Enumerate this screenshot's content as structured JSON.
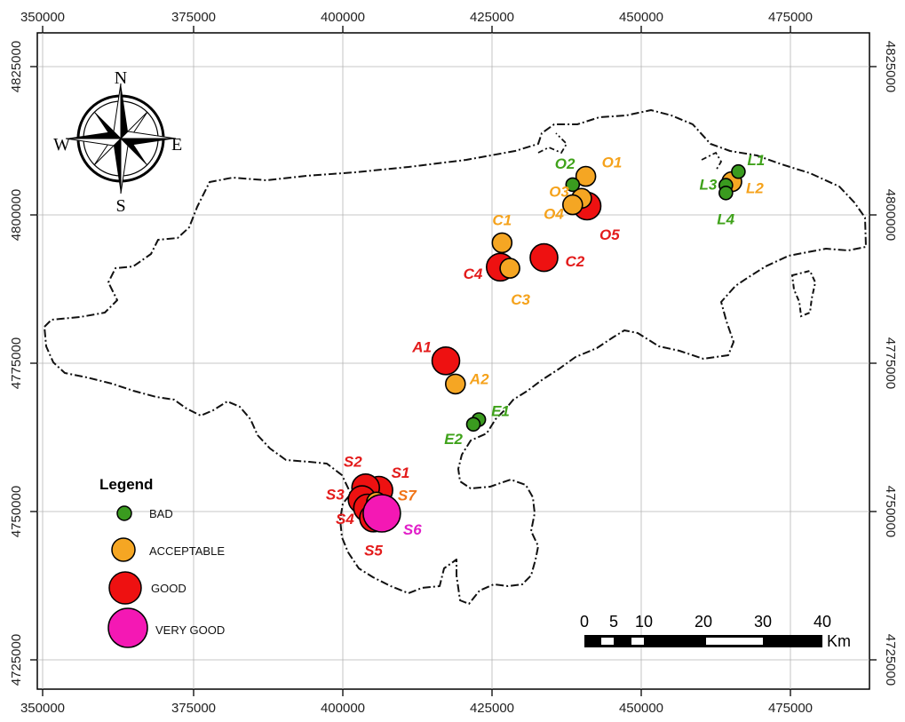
{
  "map": {
    "x_ticks": [
      "350000",
      "375000",
      "400000",
      "425000",
      "450000",
      "475000"
    ],
    "y_ticks": [
      "4825000",
      "4800000",
      "4775000",
      "4750000",
      "4725000"
    ],
    "colors": {
      "bad": "#3a9b1f",
      "acceptable": "#f5a623",
      "good": "#ee1111",
      "very_good": "#f418b4",
      "label_red": "#e31b1b",
      "label_orange": "#f5a21b",
      "label_green": "#3fa21a",
      "label_magenta": "#e11ec8",
      "label_darkorange": "#f07418"
    }
  },
  "compass": {
    "n": "N",
    "s": "S",
    "e": "E",
    "w": "W"
  },
  "legend": {
    "title": "Legend",
    "items": [
      {
        "key": "bad",
        "label": "BAD"
      },
      {
        "key": "acceptable",
        "label": "ACCEPTABLE"
      },
      {
        "key": "good",
        "label": "GOOD"
      },
      {
        "key": "very_good",
        "label": "VERY GOOD"
      }
    ]
  },
  "scale_bar": {
    "ticks": [
      "0",
      "5",
      "10",
      "20",
      "30",
      "40"
    ],
    "unit": "Km"
  },
  "sites": [
    {
      "id": "L1",
      "class": "bad",
      "x": 466300,
      "y": 4807300
    },
    {
      "id": "L2",
      "class": "acceptable",
      "x": 465200,
      "y": 4805600
    },
    {
      "id": "L3",
      "class": "bad",
      "x": 464200,
      "y": 4805000
    },
    {
      "id": "L4",
      "class": "bad",
      "x": 464200,
      "y": 4803700
    },
    {
      "id": "O1",
      "class": "acceptable",
      "x": 440800,
      "y": 4806500
    },
    {
      "id": "O2",
      "class": "bad",
      "x": 438600,
      "y": 4805100
    },
    {
      "id": "O3",
      "class": "acceptable",
      "x": 440100,
      "y": 4802800
    },
    {
      "id": "O4",
      "class": "acceptable",
      "x": 438600,
      "y": 4801700
    },
    {
      "id": "O5",
      "class": "good",
      "x": 441000,
      "y": 4801500
    },
    {
      "id": "C1",
      "class": "acceptable",
      "x": 426800,
      "y": 4795300
    },
    {
      "id": "C2",
      "class": "good",
      "x": 433800,
      "y": 4792800
    },
    {
      "id": "C3",
      "class": "acceptable",
      "x": 428100,
      "y": 4791000
    },
    {
      "id": "C4",
      "class": "good",
      "x": 426500,
      "y": 4791200
    },
    {
      "id": "A1",
      "class": "good",
      "x": 417400,
      "y": 4775400
    },
    {
      "id": "A2",
      "class": "acceptable",
      "x": 419000,
      "y": 4771500
    },
    {
      "id": "E1",
      "class": "bad",
      "x": 422900,
      "y": 4765500
    },
    {
      "id": "E2",
      "class": "bad",
      "x": 422000,
      "y": 4764700
    },
    {
      "id": "S1",
      "class": "good",
      "x": 406200,
      "y": 4753600
    },
    {
      "id": "S2",
      "class": "good",
      "x": 404000,
      "y": 4754000
    },
    {
      "id": "S3",
      "class": "good",
      "x": 403400,
      "y": 4752000
    },
    {
      "id": "S4",
      "class": "good",
      "x": 404300,
      "y": 4750600
    },
    {
      "id": "S5",
      "class": "good",
      "x": 405300,
      "y": 4748900
    },
    {
      "id": "S6",
      "class": "very_good",
      "x": 406700,
      "y": 4749700
    },
    {
      "id": "S7",
      "class": "acceptable",
      "x": 405800,
      "y": 4751600
    }
  ]
}
